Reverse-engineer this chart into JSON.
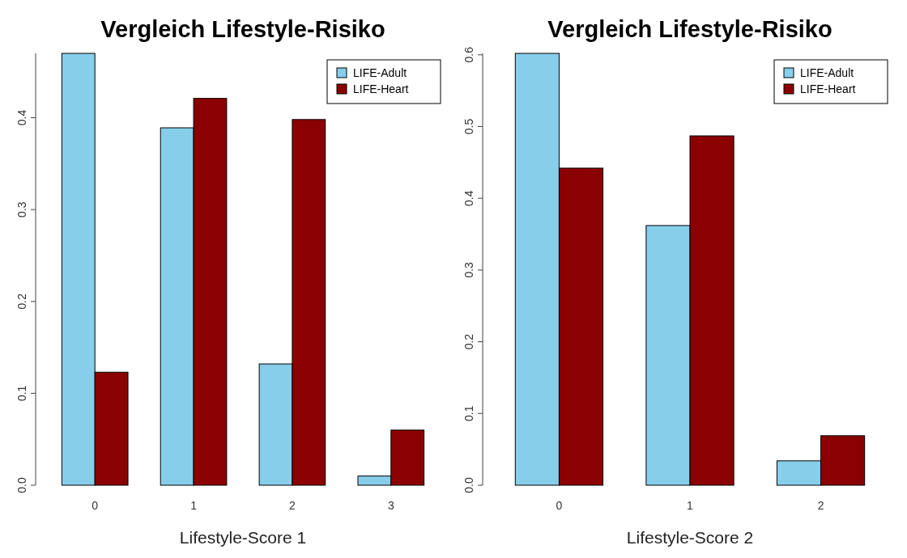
{
  "chart_data": [
    {
      "type": "bar",
      "title": "Vergleich Lifestyle-Risiko",
      "xlabel": "Lifestyle-Score 1",
      "categories": [
        "0",
        "1",
        "2",
        "3"
      ],
      "series": [
        {
          "name": "LIFE-Adult",
          "color": "#87ceeb",
          "values": [
            0.47,
            0.389,
            0.132,
            0.01
          ]
        },
        {
          "name": "LIFE-Heart",
          "color": "#8b0000",
          "values": [
            0.123,
            0.421,
            0.398,
            0.06
          ]
        }
      ],
      "ylim": [
        0,
        0.47
      ],
      "yticks": [
        {
          "value": 0,
          "label": "0.0"
        },
        0.1,
        0.2,
        0.3,
        0.4
      ],
      "grid": false,
      "legend": "top right"
    },
    {
      "type": "bar",
      "title": "Vergleich Lifestyle-Risiko",
      "xlabel": "Lifestyle-Score 2",
      "categories": [
        "0",
        "1",
        "2"
      ],
      "series": [
        {
          "name": "LIFE-Adult",
          "color": "#87ceeb",
          "values": [
            0.602,
            0.362,
            0.034
          ]
        },
        {
          "name": "LIFE-Heart",
          "color": "#8b0000",
          "values": [
            0.442,
            0.487,
            0.069
          ]
        }
      ],
      "ylim": [
        0,
        0.602
      ],
      "yticks": [
        {
          "value": 0,
          "label": "0.0"
        },
        0.1,
        0.2,
        0.3,
        0.4,
        0.5,
        0.6
      ],
      "grid": false,
      "legend": "top right"
    }
  ]
}
